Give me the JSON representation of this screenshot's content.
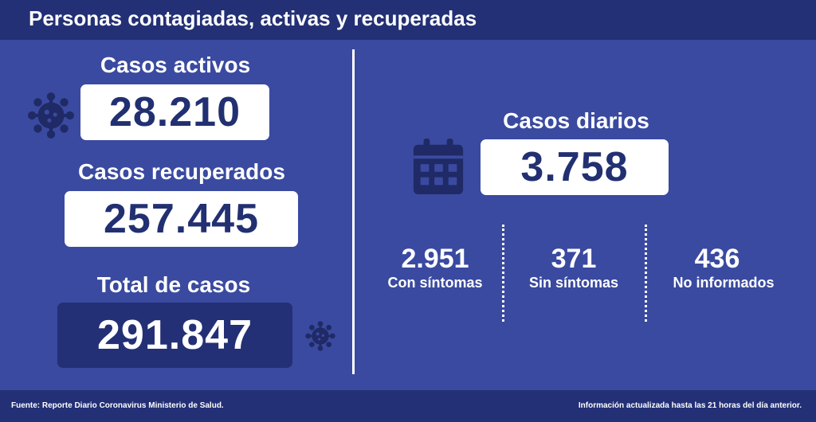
{
  "header": {
    "title": "Personas contagiadas, activas y recuperadas"
  },
  "left": {
    "active": {
      "label": "Casos activos",
      "value": "28.210"
    },
    "recovered": {
      "label": "Casos recuperados",
      "value": "257.445"
    },
    "total": {
      "label": "Total de casos",
      "value": "291.847"
    }
  },
  "right": {
    "daily": {
      "label": "Casos diarios",
      "value": "3.758"
    },
    "breakdown": [
      {
        "value": "2.951",
        "label": "Con síntomas"
      },
      {
        "value": "371",
        "label": "Sin síntomas"
      },
      {
        "value": "436",
        "label": "No informados"
      }
    ]
  },
  "footer": {
    "source": "Fuente: Reporte Diario Coronavirus Ministerio de Salud.",
    "note": "Información actualizada hasta las 21 horas  del día anterior."
  },
  "icons": [
    "virus-icon",
    "calendar-icon"
  ],
  "colors": {
    "background": "#3a4aa0",
    "header": "#233075",
    "box": "#ffffff",
    "number": "#223072"
  }
}
